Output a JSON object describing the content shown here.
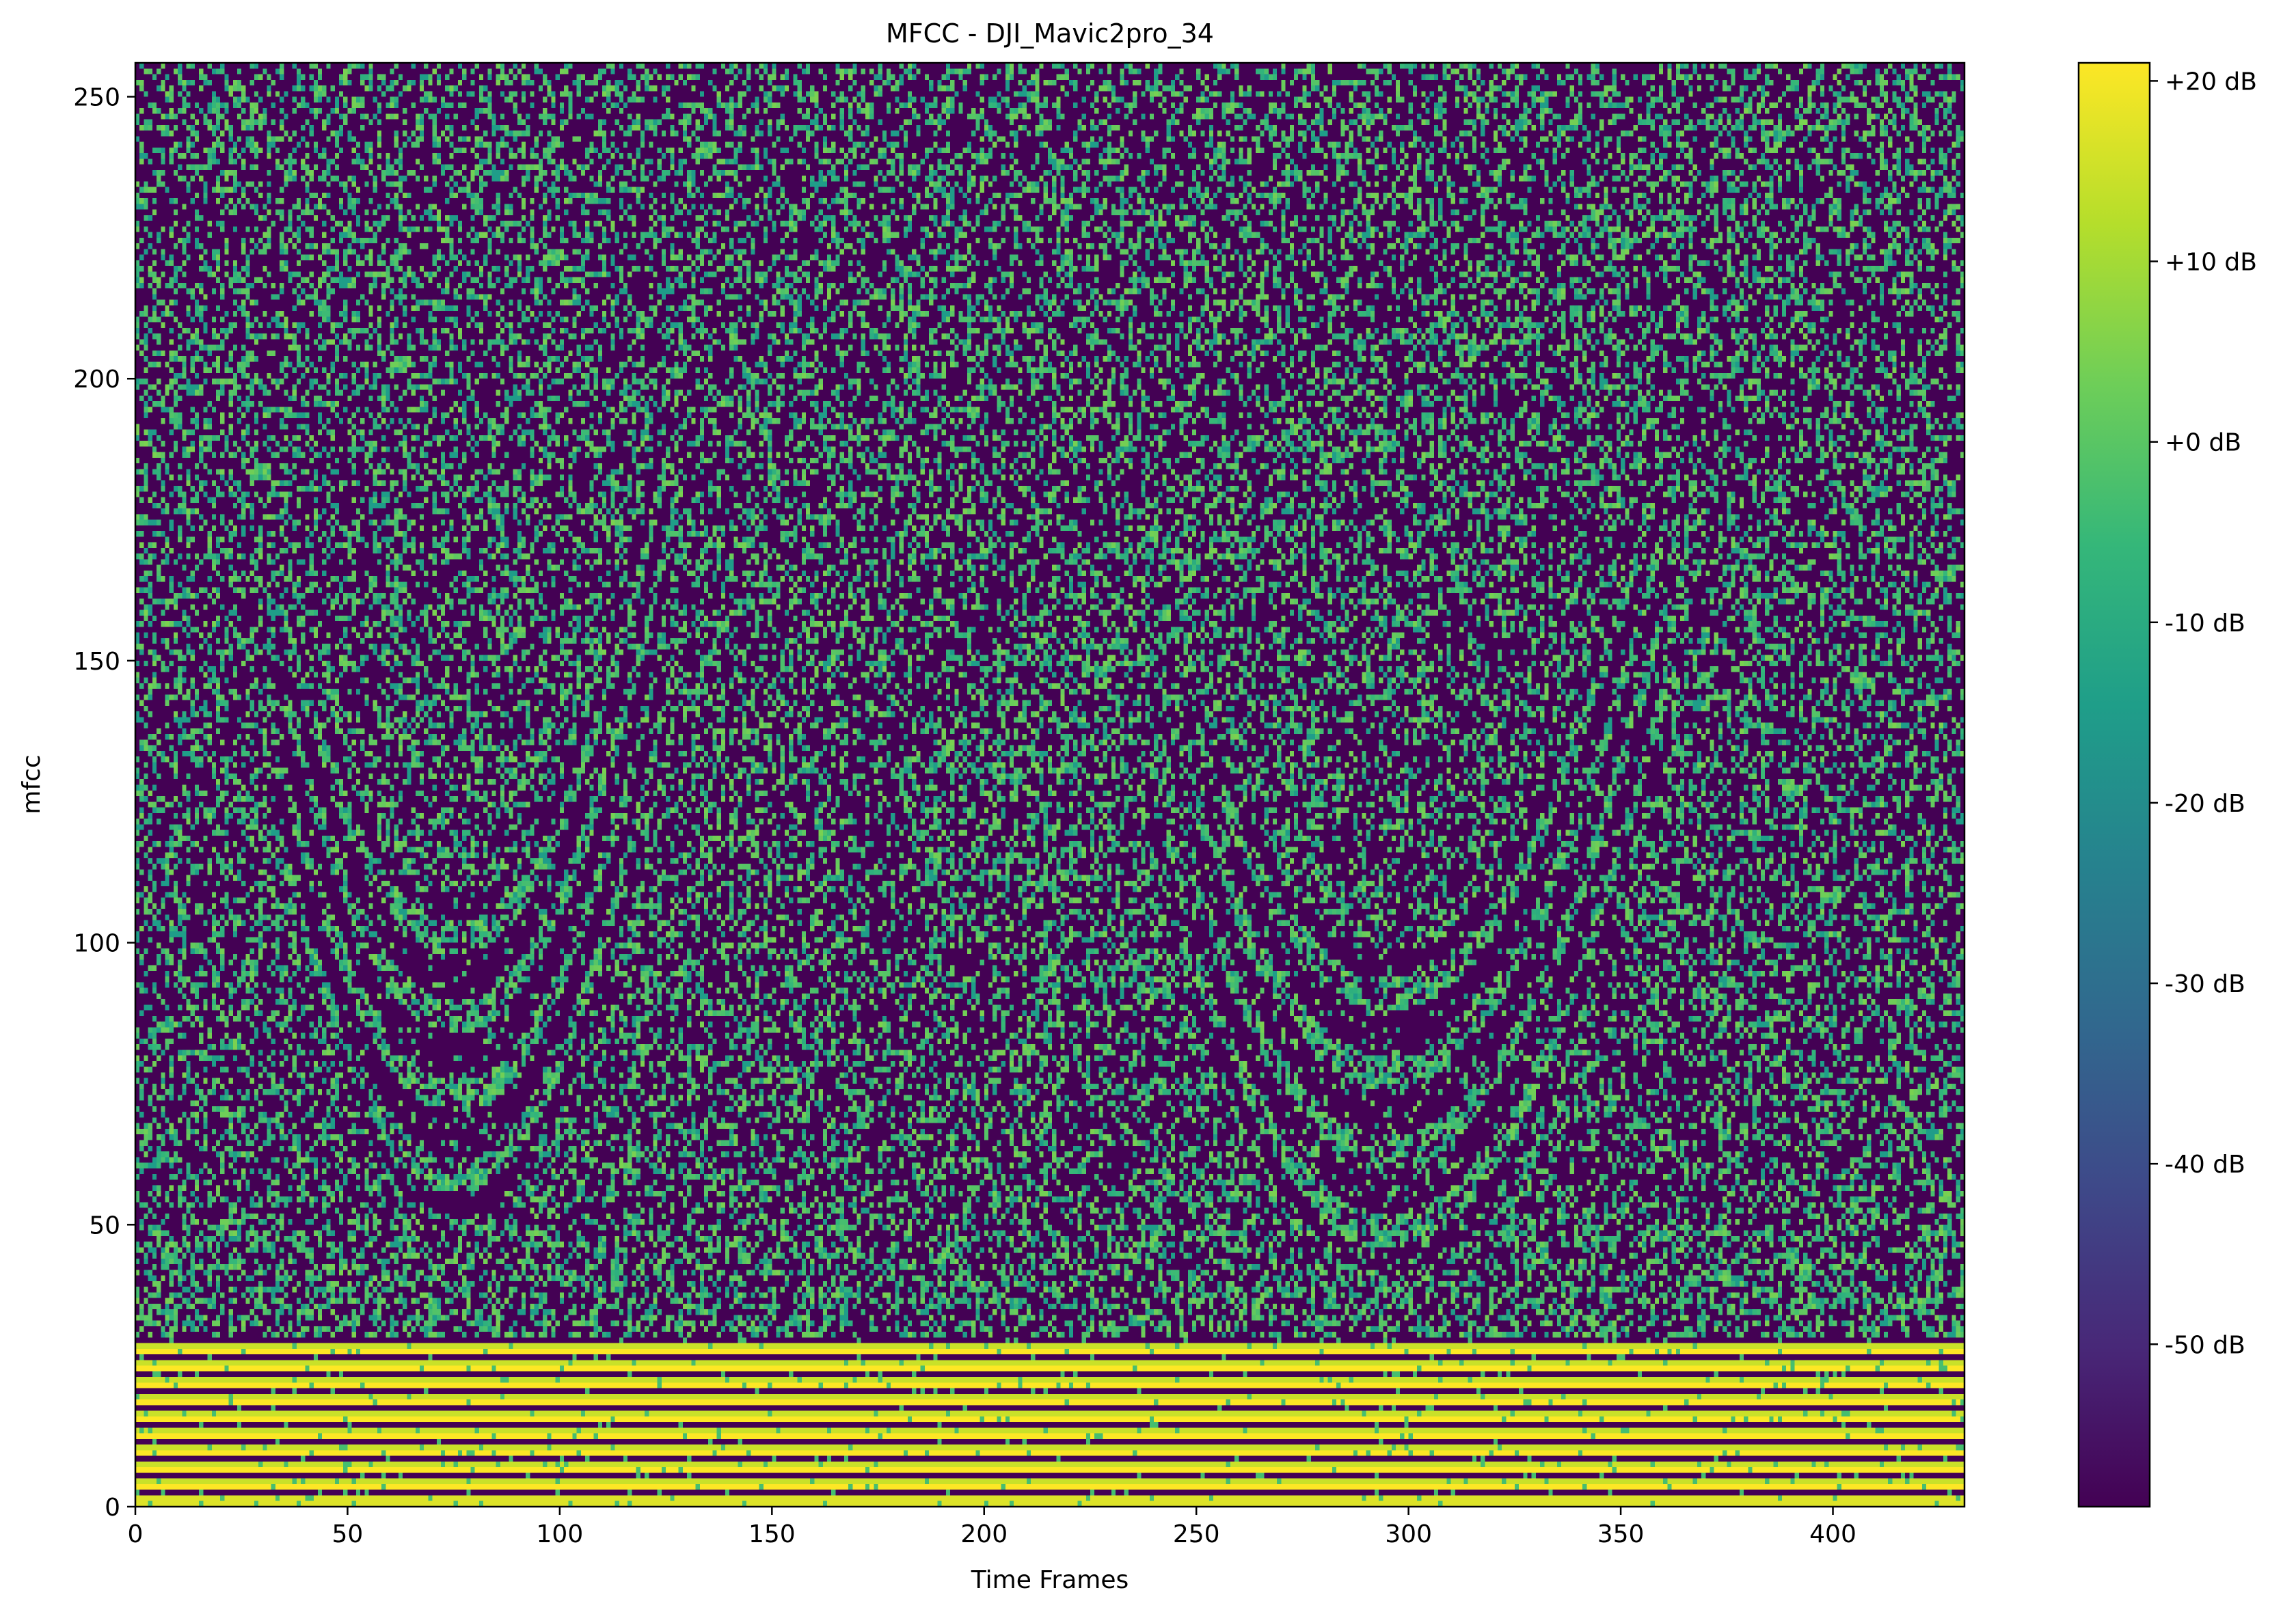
{
  "chart_data": {
    "type": "heatmap",
    "title": "MFCC - DJI_Mavic2pro_34",
    "xlabel": "Time Frames",
    "ylabel": "mfcc",
    "xlim": [
      0,
      431
    ],
    "ylim": [
      0,
      256
    ],
    "xticks": [
      0,
      50,
      100,
      150,
      200,
      250,
      300,
      350,
      400
    ],
    "yticks": [
      0,
      50,
      100,
      150,
      200,
      250
    ],
    "colormap": "viridis",
    "colormap_stops": [
      "#440154",
      "#482878",
      "#3e4989",
      "#31688e",
      "#26828e",
      "#1f9e89",
      "#35b779",
      "#6ece58",
      "#b5de2b",
      "#fde725"
    ],
    "colorbar": {
      "range": [
        -59,
        21
      ],
      "ticks": [
        -50,
        -40,
        -30,
        -20,
        -10,
        0,
        10,
        20
      ],
      "tick_labels": [
        "-50 dB",
        "-40 dB",
        "-30 dB",
        "-20 dB",
        "-10 dB",
        "+0 dB",
        "+10 dB",
        "+20 dB"
      ]
    },
    "bands": {
      "low_stripes": {
        "y_range": [
          0,
          30
        ],
        "description_values_db": [
          20,
          -59
        ]
      },
      "arc_features": [
        {
          "x_center": 75,
          "y_min": 58,
          "x_range": [
            35,
            125
          ]
        },
        {
          "x_center": 295,
          "y_min": 48,
          "x_range": [
            250,
            360
          ]
        }
      ]
    }
  }
}
